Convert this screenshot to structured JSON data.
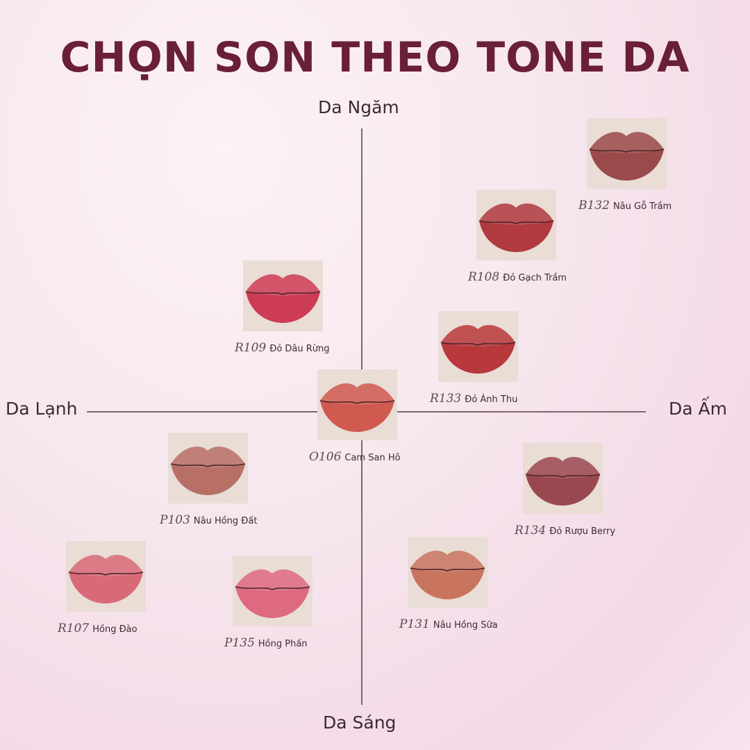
{
  "title": "CHỌN SON THEO TONE DA",
  "axes": {
    "top": "Da Ngăm",
    "bottom": "Da Sáng",
    "left": "Da Lạnh",
    "right": "Da Ấm"
  },
  "items": [
    {
      "code": "B132",
      "name": "Nâu Gỗ Trầm",
      "color": "#9a4a4a"
    },
    {
      "code": "R108",
      "name": "Đỏ Gạch Trầm",
      "color": "#b03a40"
    },
    {
      "code": "R109",
      "name": "Đỏ Dâu Rừng",
      "color": "#cc3c55"
    },
    {
      "code": "R133",
      "name": "Đỏ Ánh Thu",
      "color": "#b8383c"
    },
    {
      "code": "O106",
      "name": "Cam San Hô",
      "color": "#d05a50"
    },
    {
      "code": "P103",
      "name": "Nâu Hồng Đất",
      "color": "#b87066"
    },
    {
      "code": "R134",
      "name": "Đỏ Rượu Berry",
      "color": "#9a4850"
    },
    {
      "code": "R107",
      "name": "Hồng Đào",
      "color": "#d86a78"
    },
    {
      "code": "P135",
      "name": "Hồng Phấn",
      "color": "#de6a80"
    },
    {
      "code": "P131",
      "name": "Nâu Hồng Sữa",
      "color": "#c8745e"
    }
  ]
}
